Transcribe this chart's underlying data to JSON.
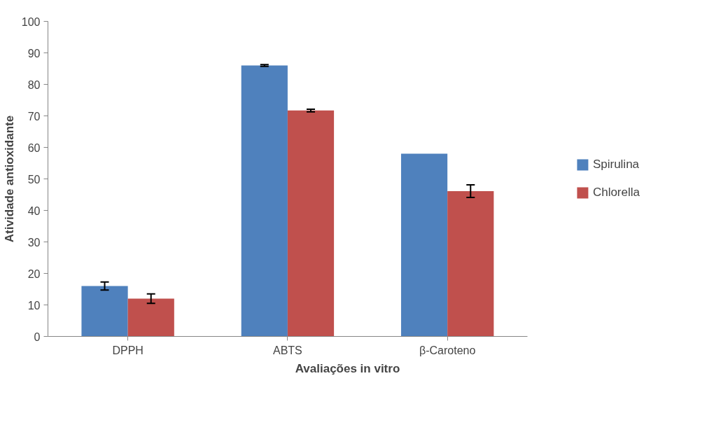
{
  "chart_data": {
    "type": "bar",
    "xlabel": "Avaliações in vitro",
    "ylabel": "Atividade antioxidante",
    "categories": [
      "DPPH",
      "ABTS",
      "β-Caroteno"
    ],
    "series": [
      {
        "name": "Spirulina",
        "color": "#4f81bd",
        "values": [
          16,
          86,
          58
        ],
        "errors": [
          1.3,
          0.3,
          null
        ]
      },
      {
        "name": "Chlorella",
        "color": "#c0504d",
        "values": [
          12,
          71.7,
          46.1
        ],
        "errors": [
          1.5,
          0.4,
          2
        ]
      }
    ],
    "ylim": [
      0,
      100
    ],
    "yticks": [
      0,
      10,
      20,
      30,
      40,
      50,
      60,
      70,
      80,
      90,
      100
    ],
    "grid": false,
    "legend": "right"
  }
}
